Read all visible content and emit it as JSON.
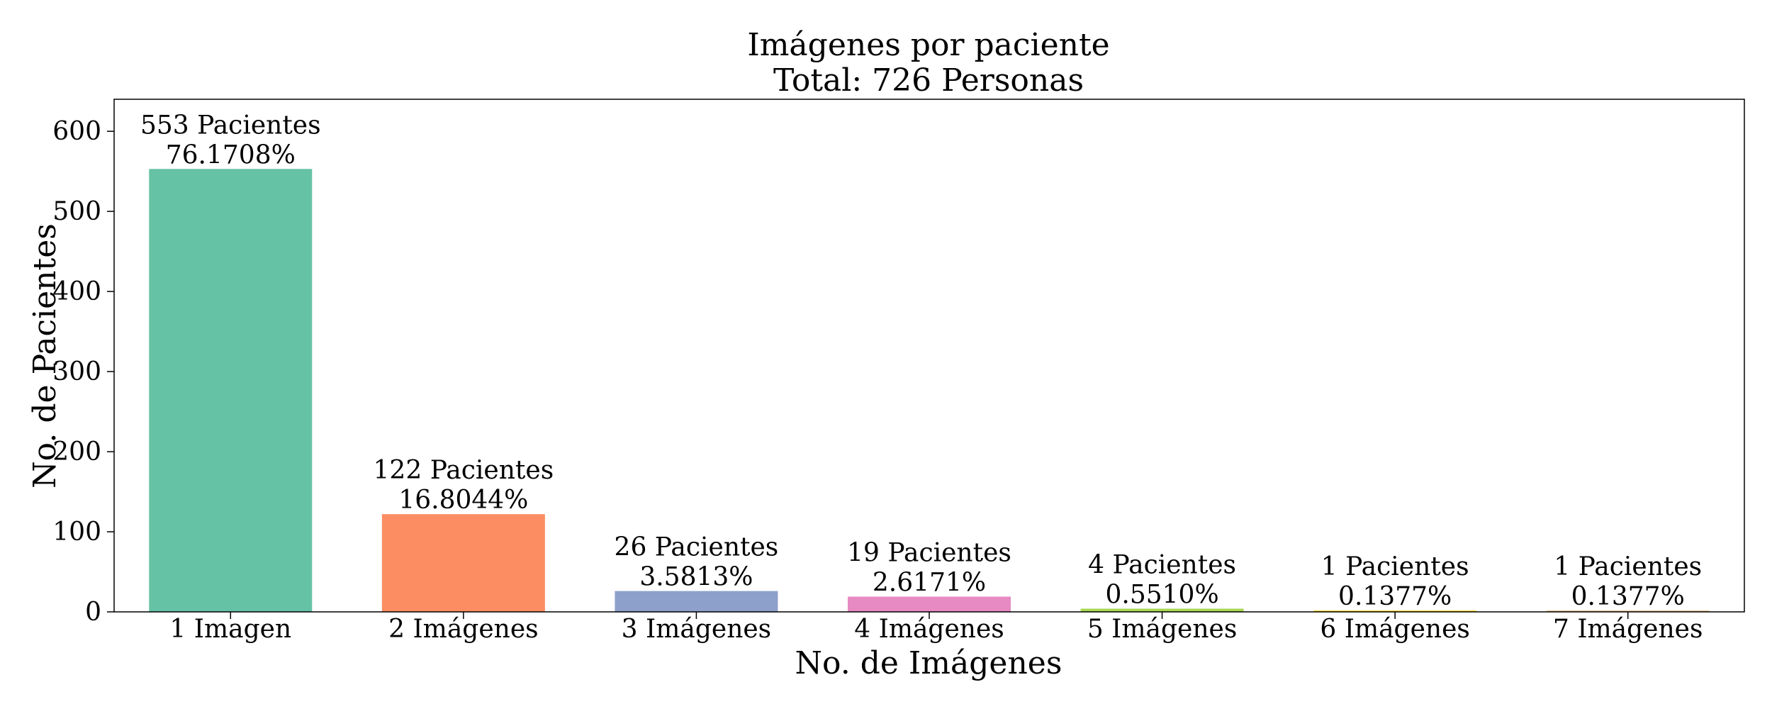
{
  "chart_data": {
    "type": "bar",
    "title": "Imágenes por paciente",
    "subtitle": "Total: 726 Personas",
    "xlabel": "No. de Imágenes",
    "ylabel": "No. de Pacientes",
    "categories": [
      "1 Imagen",
      "2 Imágenes",
      "3 Imágenes",
      "4 Imágenes",
      "5 Imágenes",
      "6 Imágenes",
      "7 Imágenes"
    ],
    "values": [
      553,
      122,
      26,
      19,
      4,
      1,
      1
    ],
    "count_labels": [
      "553 Pacientes",
      "122 Pacientes",
      "26 Pacientes",
      "19 Pacientes",
      "4 Pacientes",
      "1 Pacientes",
      "1 Pacientes"
    ],
    "percent_labels": [
      "76.1708%",
      "16.8044%",
      "3.5813%",
      "2.6171%",
      "0.5510%",
      "0.1377%",
      "0.1377%"
    ],
    "colors": [
      "#66c2a5",
      "#fc8d62",
      "#8da0cb",
      "#e78ac3",
      "#a6d854",
      "#ffd92f",
      "#e5c494"
    ],
    "ylim": [
      0,
      640
    ],
    "yticks": [
      0,
      100,
      200,
      300,
      400,
      500,
      600
    ],
    "grid": false,
    "legend": "none"
  }
}
